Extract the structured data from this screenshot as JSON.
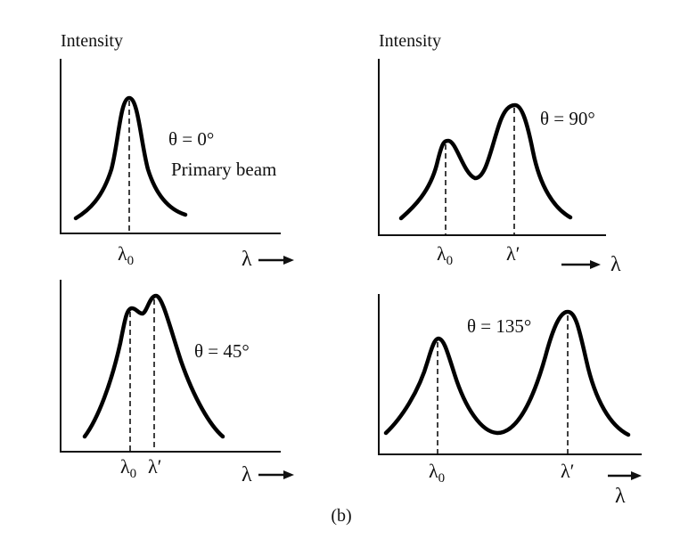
{
  "figure_label": "(b)",
  "colors": {
    "curve": "#000000",
    "axis": "#111111",
    "background": "#ffffff"
  },
  "panels": [
    {
      "id": "theta-0",
      "y_label": "Intensity",
      "angle": "θ = 0°",
      "annotation": "Primary beam",
      "tick_labels": [
        "λ0"
      ],
      "x_label": "λ"
    },
    {
      "id": "theta-90",
      "y_label": "Intensity",
      "angle": "θ = 90°",
      "tick_labels": [
        "λ0",
        "λ′"
      ],
      "x_label": "λ"
    },
    {
      "id": "theta-45",
      "angle": "θ = 45°",
      "tick_labels": [
        "λ0",
        "λ′"
      ],
      "x_label": "λ"
    },
    {
      "id": "theta-135",
      "angle": "θ = 135°",
      "tick_labels": [
        "λ0",
        "λ′"
      ],
      "x_label": "λ"
    }
  ]
}
